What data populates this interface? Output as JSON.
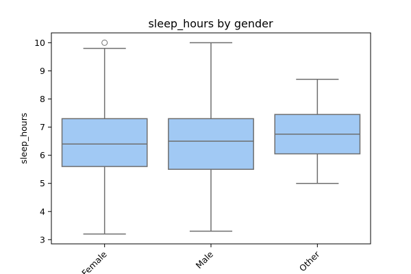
{
  "chart_data": {
    "type": "box",
    "title": "sleep_hours by gender",
    "xlabel": "",
    "ylabel": "sleep_hours",
    "categories": [
      "Female",
      "Male",
      "Other"
    ],
    "ylim": [
      2.85,
      10.35
    ],
    "yticks": [
      3,
      4,
      5,
      6,
      7,
      8,
      9,
      10
    ],
    "boxes": [
      {
        "category": "Female",
        "whisker_low": 3.2,
        "q1": 5.6,
        "median": 6.4,
        "q3": 7.3,
        "whisker_high": 9.8,
        "outliers": [
          10.0
        ]
      },
      {
        "category": "Male",
        "whisker_low": 3.3,
        "q1": 5.5,
        "median": 6.5,
        "q3": 7.3,
        "whisker_high": 10.0,
        "outliers": []
      },
      {
        "category": "Other",
        "whisker_low": 5.0,
        "q1": 6.05,
        "median": 6.75,
        "q3": 7.45,
        "whisker_high": 8.7,
        "outliers": []
      }
    ],
    "grid": false,
    "legend": "none",
    "box_fill_color": "#a1c9f4",
    "line_color": "#6e6e6e"
  }
}
